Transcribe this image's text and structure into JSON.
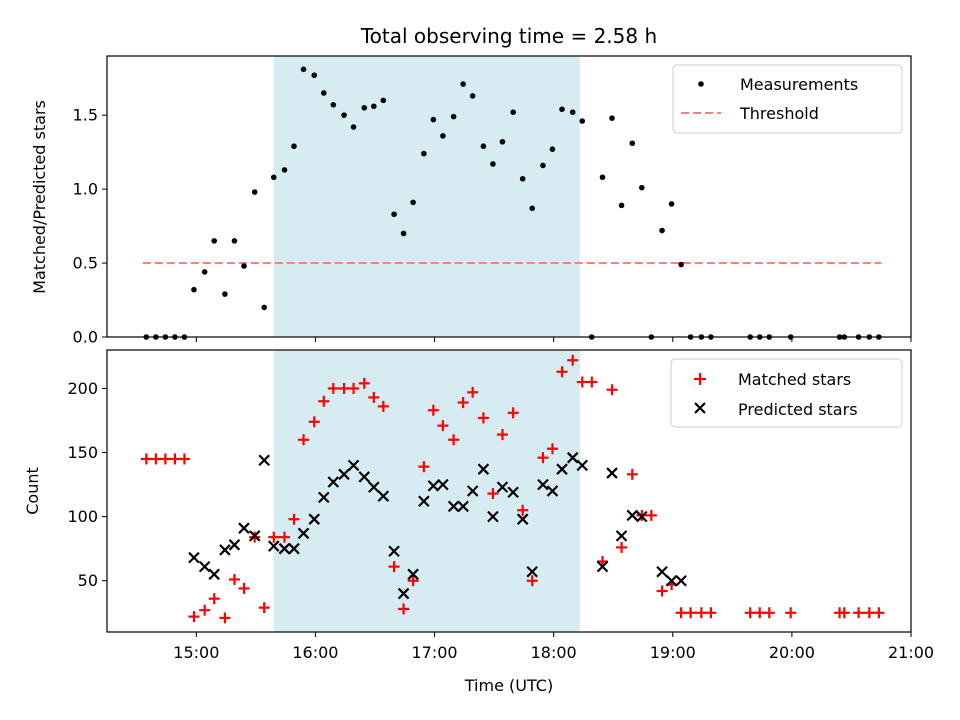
{
  "chart_data": [
    {
      "type": "scatter",
      "title": "Total observing time = 2.58 h",
      "ylabel": "Matched/Predicted stars",
      "xlabel": "",
      "x_unit": "hours (UTC)",
      "xlim": [
        14.25,
        21.0
      ],
      "ylim": [
        0,
        1.9
      ],
      "yticks": [
        0.0,
        0.5,
        1.0,
        1.5
      ],
      "ytick_labels": [
        "0.0",
        "0.5",
        "1.0",
        "1.5"
      ],
      "shaded_region": [
        15.65,
        18.22
      ],
      "shade_color": "#add8e6",
      "legend": {
        "placement": "top-right",
        "entries": [
          {
            "label": "Measurements",
            "marker": "dot",
            "color": "#000000"
          },
          {
            "label": "Threshold",
            "marker": "dashed",
            "color": "#ff7f7f"
          }
        ]
      },
      "threshold": {
        "value": 0.5,
        "x_range": [
          14.55,
          20.75
        ],
        "color": "#ff7f7f"
      },
      "measurements": {
        "x": [
          14.58,
          14.66,
          14.74,
          14.82,
          14.9,
          14.98,
          15.07,
          15.15,
          15.24,
          15.32,
          15.4,
          15.49,
          15.57,
          15.65,
          15.74,
          15.82,
          15.9,
          15.99,
          16.07,
          16.15,
          16.24,
          16.32,
          16.41,
          16.49,
          16.57,
          16.66,
          16.74,
          16.82,
          16.91,
          16.99,
          17.07,
          17.16,
          17.24,
          17.32,
          17.41,
          17.49,
          17.57,
          17.66,
          17.74,
          17.82,
          17.91,
          17.99,
          18.07,
          18.16,
          18.24,
          18.32,
          18.41,
          18.49,
          18.57,
          18.66,
          18.74,
          18.82,
          18.91,
          18.99,
          19.07,
          19.15,
          19.24,
          19.32,
          19.65,
          19.73,
          19.81,
          19.99,
          20.4,
          20.44,
          20.56,
          20.65,
          20.73
        ],
        "y": [
          0,
          0,
          0,
          0,
          0,
          0.32,
          0.44,
          0.65,
          0.29,
          0.65,
          0.48,
          0.98,
          0.2,
          1.08,
          1.13,
          1.29,
          1.81,
          1.77,
          1.65,
          1.57,
          1.5,
          1.42,
          1.55,
          1.56,
          1.6,
          0.83,
          0.7,
          0.91,
          1.24,
          1.47,
          1.36,
          1.49,
          1.71,
          1.63,
          1.29,
          1.17,
          1.32,
          1.52,
          1.07,
          0.87,
          1.16,
          1.27,
          1.54,
          1.52,
          1.46,
          0,
          1.08,
          1.48,
          0.89,
          1.31,
          1.01,
          0,
          0.72,
          0.9,
          0.49,
          0,
          0,
          0,
          0,
          0,
          0,
          0,
          0,
          0,
          0,
          0,
          0
        ]
      }
    },
    {
      "type": "scatter",
      "title": "",
      "ylabel": "Count",
      "xlabel": "Time (UTC)",
      "x_unit": "hours (UTC)",
      "xlim": [
        14.25,
        21.0
      ],
      "ylim": [
        10,
        230
      ],
      "xticks": [
        15,
        16,
        17,
        18,
        19,
        20,
        21
      ],
      "xtick_labels": [
        "15:00",
        "16:00",
        "17:00",
        "18:00",
        "19:00",
        "20:00",
        "21:00"
      ],
      "yticks": [
        50,
        100,
        150,
        200
      ],
      "ytick_labels": [
        "50",
        "100",
        "150",
        "200"
      ],
      "shaded_region": [
        15.65,
        18.22
      ],
      "shade_color": "#add8e6",
      "legend": {
        "placement": "top-right",
        "entries": [
          {
            "label": "Matched stars",
            "marker": "plus",
            "color": "#ff0000"
          },
          {
            "label": "Predicted stars",
            "marker": "x",
            "color": "#000000"
          }
        ]
      },
      "series": [
        {
          "name": "Matched stars",
          "marker": "plus",
          "color": "#ff0000",
          "x": [
            14.58,
            14.66,
            14.74,
            14.82,
            14.9,
            14.98,
            15.07,
            15.15,
            15.24,
            15.32,
            15.4,
            15.49,
            15.57,
            15.65,
            15.74,
            15.82,
            15.9,
            15.99,
            16.07,
            16.15,
            16.24,
            16.32,
            16.41,
            16.49,
            16.57,
            16.66,
            16.74,
            16.82,
            16.91,
            16.99,
            17.07,
            17.16,
            17.24,
            17.32,
            17.41,
            17.49,
            17.57,
            17.66,
            17.74,
            17.82,
            17.91,
            17.99,
            18.07,
            18.16,
            18.24,
            18.32,
            18.41,
            18.49,
            18.57,
            18.66,
            18.74,
            18.82,
            18.91,
            18.99,
            19.07,
            19.15,
            19.24,
            19.32,
            19.65,
            19.73,
            19.81,
            19.99,
            20.4,
            20.44,
            20.56,
            20.65,
            20.73
          ],
          "y": [
            145,
            145,
            145,
            145,
            145,
            22,
            27,
            36,
            21,
            51,
            44,
            84,
            29,
            84,
            84,
            98,
            160,
            174,
            190,
            200,
            200,
            200,
            204,
            193,
            186,
            61,
            28,
            50,
            139,
            183,
            171,
            160,
            189,
            197,
            177,
            118,
            164,
            181,
            105,
            50,
            146,
            153,
            213,
            222,
            205,
            205,
            65,
            199,
            76,
            133,
            101,
            101,
            42,
            47,
            25,
            25,
            25,
            25,
            25,
            25,
            25,
            25,
            25,
            25,
            25,
            25,
            25
          ]
        },
        {
          "name": "Predicted stars",
          "marker": "x",
          "color": "#000000",
          "x": [
            14.98,
            15.07,
            15.15,
            15.24,
            15.32,
            15.4,
            15.49,
            15.57,
            15.65,
            15.74,
            15.82,
            15.9,
            15.99,
            16.07,
            16.15,
            16.24,
            16.32,
            16.41,
            16.49,
            16.57,
            16.66,
            16.74,
            16.82,
            16.91,
            16.99,
            17.07,
            17.16,
            17.24,
            17.32,
            17.41,
            17.49,
            17.57,
            17.66,
            17.74,
            17.82,
            17.91,
            17.99,
            18.07,
            18.16,
            18.24,
            18.41,
            18.49,
            18.57,
            18.66,
            18.74,
            18.91,
            18.99,
            19.07
          ],
          "y": [
            68,
            61,
            55,
            74,
            78,
            91,
            85,
            144,
            77,
            75,
            75,
            87,
            98,
            115,
            127,
            133,
            140,
            131,
            123,
            116,
            73,
            40,
            55,
            112,
            124,
            125,
            108,
            108,
            120,
            137,
            100,
            123,
            119,
            98,
            57,
            125,
            120,
            137,
            146,
            140,
            61,
            134,
            85,
            101,
            100,
            57,
            50,
            50
          ]
        }
      ]
    }
  ]
}
